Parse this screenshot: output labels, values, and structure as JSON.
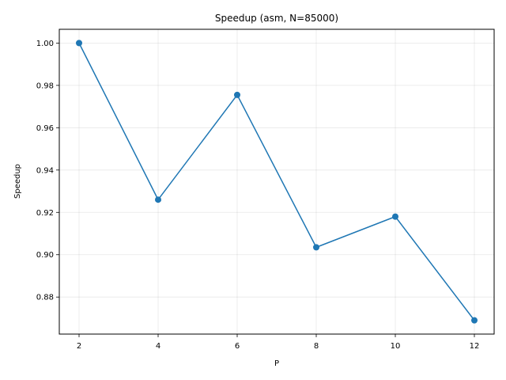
{
  "chart_data": {
    "type": "line",
    "title": "Speedup (asm, N=85000)",
    "xlabel": "P",
    "ylabel": "Speedup",
    "grid": true,
    "xlim": [
      1.5,
      12.5
    ],
    "ylim": [
      0.8625,
      1.0065
    ],
    "x_ticks": [
      2,
      4,
      6,
      8,
      10,
      12
    ],
    "x_tick_labels": [
      "2",
      "4",
      "6",
      "8",
      "10",
      "12"
    ],
    "y_ticks": [
      0.88,
      0.9,
      0.92,
      0.94,
      0.96,
      0.98,
      1.0
    ],
    "y_tick_labels": [
      "0.88",
      "0.90",
      "0.92",
      "0.94",
      "0.96",
      "0.98",
      "1.00"
    ],
    "series": [
      {
        "name": "Speedup",
        "color": "#1f77b4",
        "marker": "circle",
        "x": [
          2,
          4,
          6,
          8,
          10,
          12
        ],
        "values": [
          1.0,
          0.926,
          0.9755,
          0.9035,
          0.918,
          0.869
        ]
      }
    ]
  }
}
